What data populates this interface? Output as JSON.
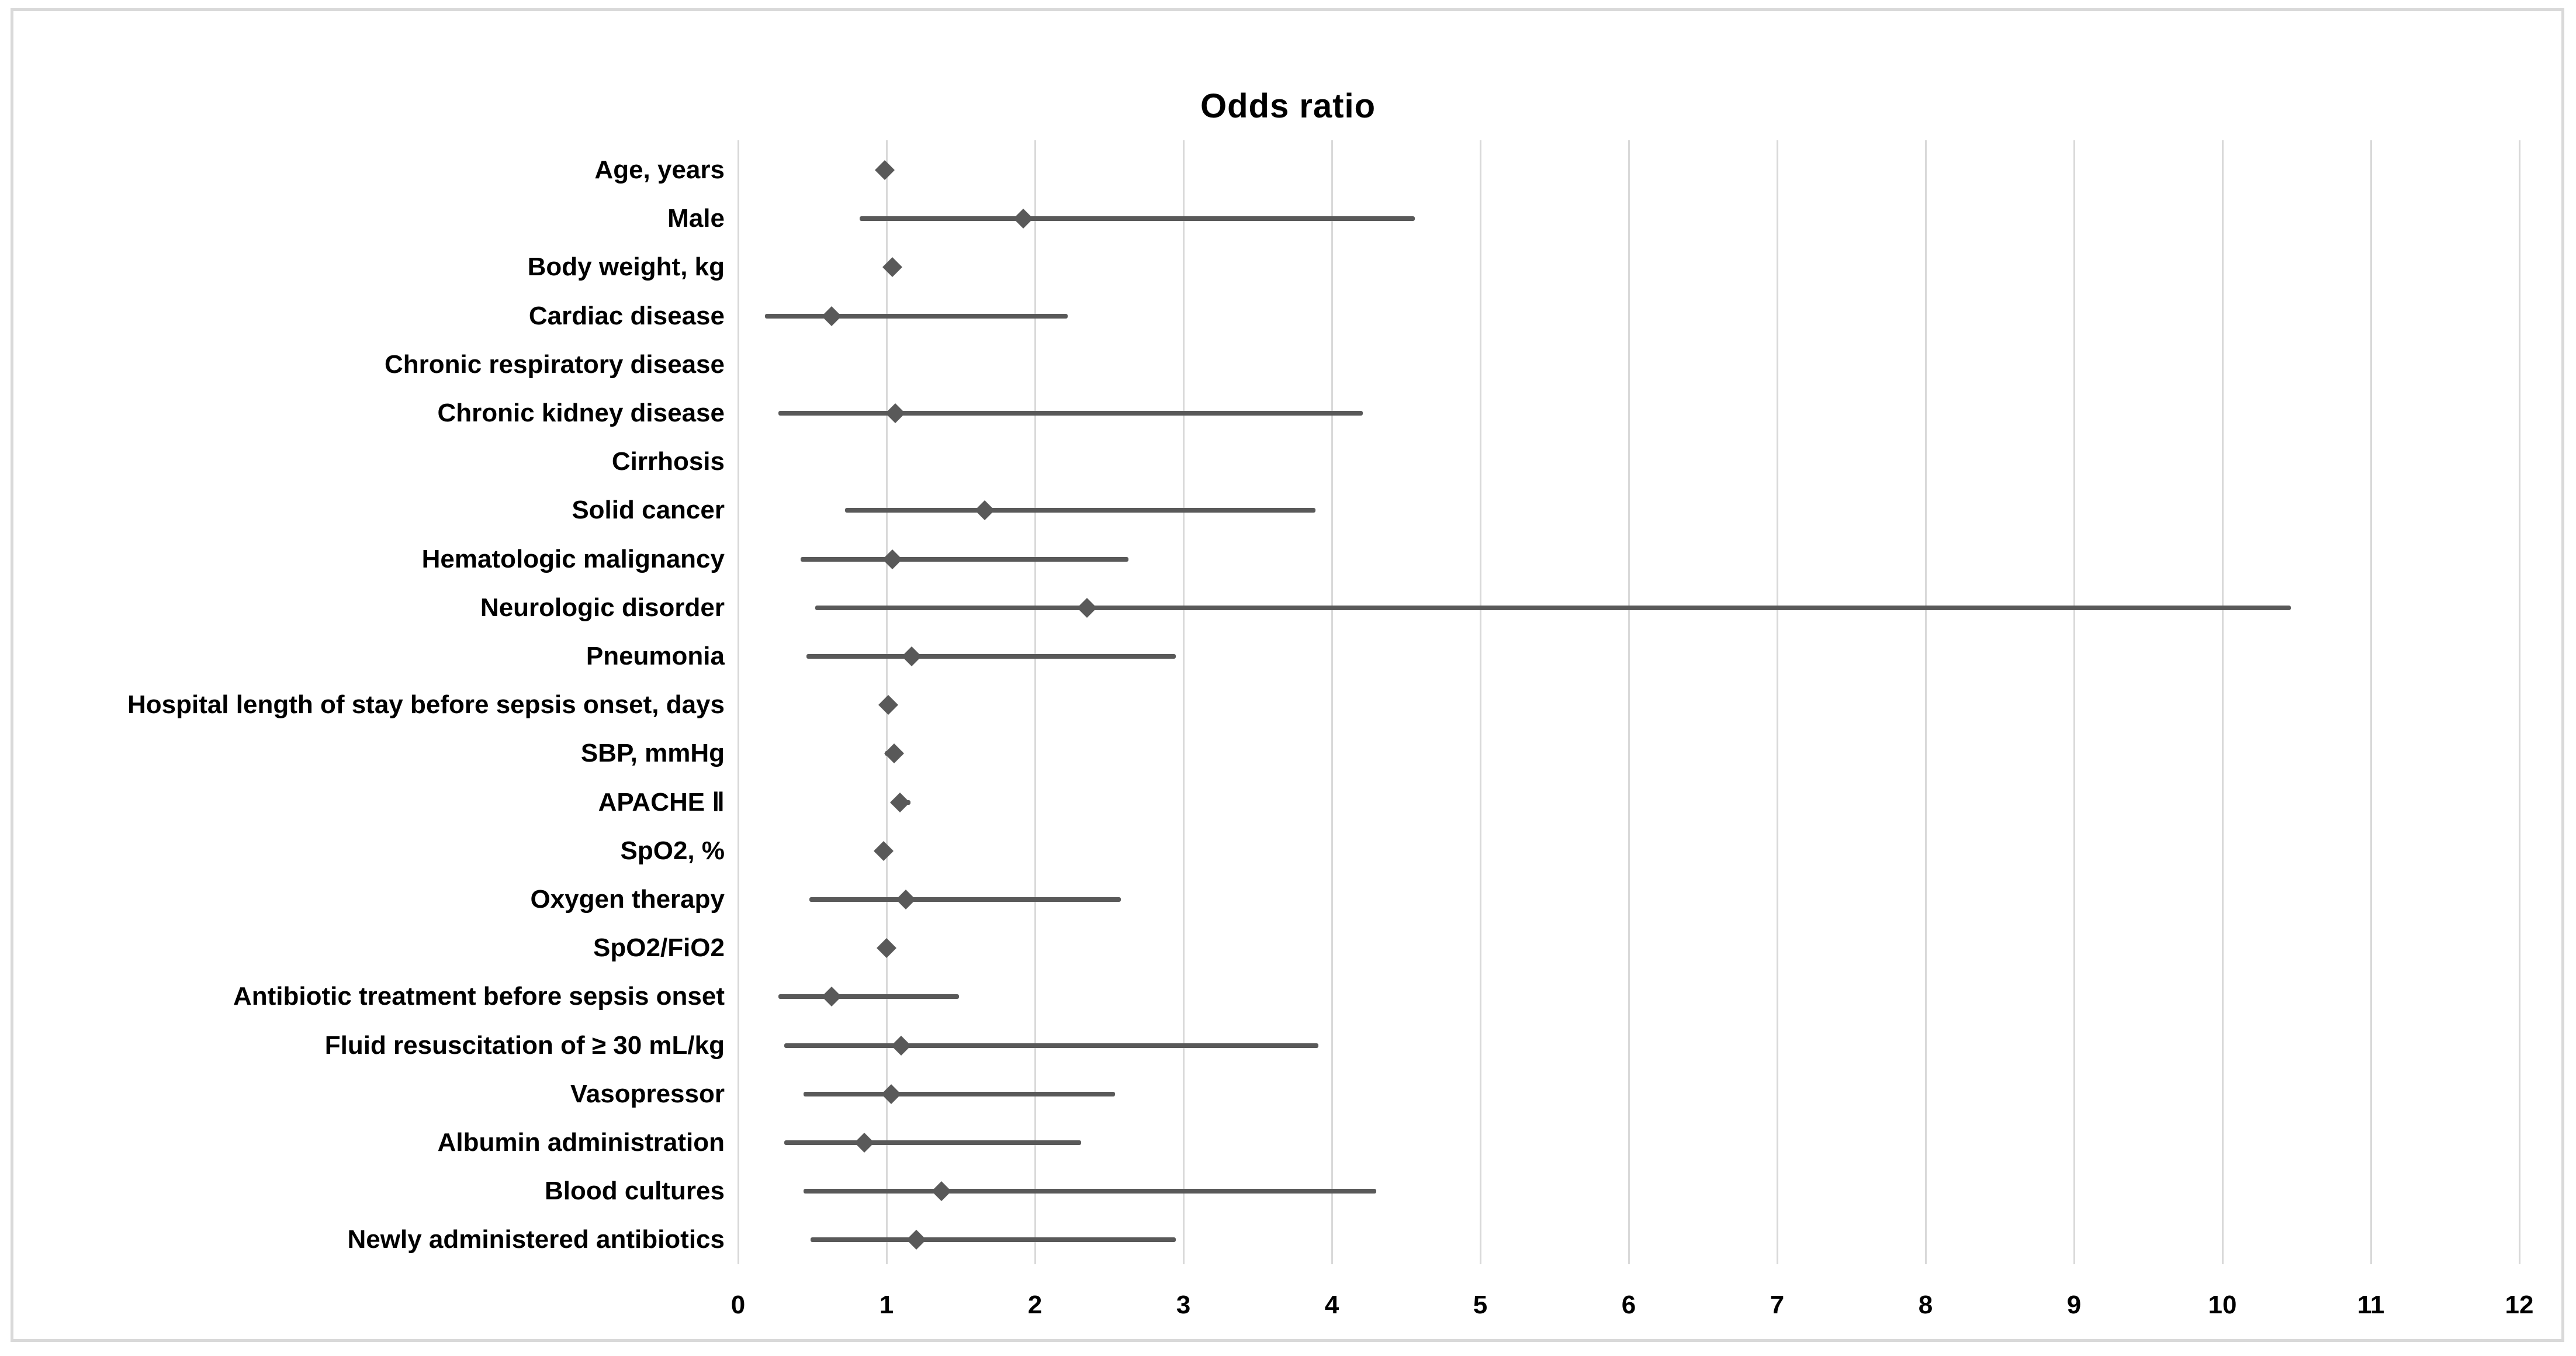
{
  "chart_data": {
    "type": "scatter",
    "variant": "forest-plot",
    "title": "Odds ratio",
    "xlabel": "",
    "ylabel": "",
    "xlim": [
      0,
      12
    ],
    "x_ticks": [
      0,
      1,
      2,
      3,
      4,
      5,
      6,
      7,
      8,
      9,
      10,
      11,
      12
    ],
    "grid": true,
    "legend": "none",
    "marker": "diamond",
    "rows": [
      {
        "label": "Age, years",
        "or": 0.99,
        "ci_low": null,
        "ci_high": null
      },
      {
        "label": "Male",
        "or": 1.92,
        "ci_low": 0.82,
        "ci_high": 4.56
      },
      {
        "label": "Body weight, kg",
        "or": 1.04,
        "ci_low": null,
        "ci_high": null
      },
      {
        "label": "Cardiac disease",
        "or": 0.63,
        "ci_low": 0.18,
        "ci_high": 2.22
      },
      {
        "label": "Chronic respiratory disease",
        "or": null,
        "ci_low": null,
        "ci_high": null
      },
      {
        "label": "Chronic kidney disease",
        "or": 1.06,
        "ci_low": 0.27,
        "ci_high": 4.21
      },
      {
        "label": "Cirrhosis",
        "or": null,
        "ci_low": null,
        "ci_high": null
      },
      {
        "label": "Solid cancer",
        "or": 1.66,
        "ci_low": 0.72,
        "ci_high": 3.89
      },
      {
        "label": "Hematologic malignancy",
        "or": 1.04,
        "ci_low": 0.42,
        "ci_high": 2.63
      },
      {
        "label": "Neurologic disorder",
        "or": 2.35,
        "ci_low": 0.52,
        "ci_high": 10.46
      },
      {
        "label": "Pneumonia",
        "or": 1.17,
        "ci_low": 0.46,
        "ci_high": 2.95
      },
      {
        "label": "Hospital length of stay before sepsis onset, days",
        "or": 1.01,
        "ci_low": null,
        "ci_high": null
      },
      {
        "label": "SBP, mmHg",
        "or": 1.05,
        "ci_low": 0.99,
        "ci_high": 1.11
      },
      {
        "label": "APACHE Ⅱ",
        "or": 1.09,
        "ci_low": 1.03,
        "ci_high": 1.16
      },
      {
        "label": "SpO2, %",
        "or": 0.98,
        "ci_low": 0.92,
        "ci_high": 1.04
      },
      {
        "label": "Oxygen therapy",
        "or": 1.13,
        "ci_low": 0.48,
        "ci_high": 2.58
      },
      {
        "label": "SpO2/FiO2",
        "or": 1.0,
        "ci_low": null,
        "ci_high": null
      },
      {
        "label": "Antibiotic treatment before sepsis onset",
        "or": 0.63,
        "ci_low": 0.27,
        "ci_high": 1.49
      },
      {
        "label": "Fluid resuscitation of ≥ 30 mL/kg",
        "or": 1.1,
        "ci_low": 0.31,
        "ci_high": 3.91
      },
      {
        "label": "Vasopressor",
        "or": 1.03,
        "ci_low": 0.44,
        "ci_high": 2.54
      },
      {
        "label": "Albumin administration",
        "or": 0.85,
        "ci_low": 0.31,
        "ci_high": 2.31
      },
      {
        "label": "Blood cultures",
        "or": 1.37,
        "ci_low": 0.44,
        "ci_high": 4.3
      },
      {
        "label": "Newly administered antibiotics",
        "or": 1.2,
        "ci_low": 0.49,
        "ci_high": 2.95
      }
    ]
  },
  "colors": {
    "marker": "#595959",
    "ci_line": "#595959",
    "gridline": "#d9d9d9",
    "text": "#000000",
    "frame": "#d9d9d9",
    "background": "#ffffff"
  }
}
